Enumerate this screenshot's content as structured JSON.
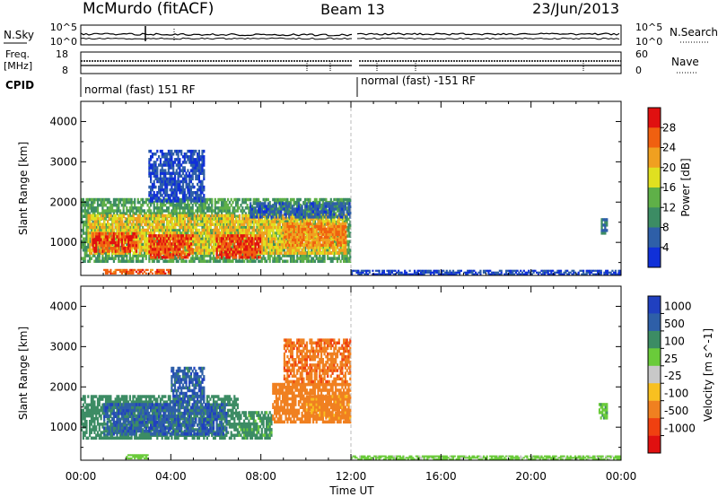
{
  "header": {
    "station": "McMurdo (fitACF)",
    "beam": "Beam 13",
    "date": "23/Jun/2013"
  },
  "top_panels": {
    "nsky_label": "N.Sky",
    "nsky_ticks": [
      "10^5",
      "10^0"
    ],
    "nsearch_label": "N.Search",
    "nsearch_ticks": [
      "10^5",
      "10^0"
    ],
    "freq_label_line1": "Freq.",
    "freq_label_line2": "[MHz]",
    "freq_ticks": [
      "18",
      "8"
    ],
    "nave_label": "Nave",
    "nave_ticks": [
      "60",
      "0"
    ],
    "cpid_label": "CPID",
    "cpid_segments": [
      {
        "label": "normal (fast) 151 RF",
        "start_hour": 0,
        "end_hour": 12
      },
      {
        "label": "normal (fast) -151 RF",
        "start_hour": 12,
        "end_hour": 24
      }
    ]
  },
  "chart_data": [
    {
      "type": "heatmap",
      "title": "",
      "xlabel": "Time UT",
      "ylabel": "Slant Range [km]",
      "xlim": [
        0,
        24
      ],
      "ylim": [
        180,
        4500
      ],
      "x_ticks": [
        "00:00",
        "04:00",
        "08:00",
        "12:00",
        "16:00",
        "20:00",
        "00:00"
      ],
      "y_ticks": [
        1000,
        2000,
        3000,
        4000
      ],
      "colorbar_label": "Power [dB]",
      "colorbar_ticks": [
        4,
        8,
        12,
        16,
        20,
        24,
        28
      ],
      "colorbar_range": [
        0,
        32
      ],
      "colors": [
        "#1030d8",
        "#2e5fa8",
        "#3c8c64",
        "#5fb048",
        "#e0e020",
        "#f0a020",
        "#f06010",
        "#e01010"
      ],
      "regions": [
        {
          "t0": 0.0,
          "t1": 12.0,
          "r0": 500,
          "r1": 2100,
          "level": 12
        },
        {
          "t0": 0.3,
          "t1": 11.8,
          "r0": 700,
          "r1": 1700,
          "level": 20
        },
        {
          "t0": 0.5,
          "t1": 2.5,
          "r0": 750,
          "r1": 1250,
          "level": 28
        },
        {
          "t0": 3.0,
          "t1": 5.0,
          "r0": 600,
          "r1": 1200,
          "level": 28
        },
        {
          "t0": 6.0,
          "t1": 8.0,
          "r0": 600,
          "r1": 1200,
          "level": 28
        },
        {
          "t0": 9.0,
          "t1": 11.8,
          "r0": 900,
          "r1": 1500,
          "level": 24
        },
        {
          "t0": 7.5,
          "t1": 12.0,
          "r0": 1600,
          "r1": 2000,
          "level": 6
        },
        {
          "t0": 3.0,
          "t1": 5.5,
          "r0": 2000,
          "r1": 3300,
          "level": 4
        },
        {
          "t0": 1.0,
          "t1": 4.0,
          "r0": 210,
          "r1": 340,
          "level": 26
        },
        {
          "t0": 23.1,
          "t1": 23.4,
          "r0": 1200,
          "r1": 1600,
          "level": 8
        },
        {
          "t0": 12.0,
          "t1": 24.0,
          "r0": 190,
          "r1": 320,
          "level": 4
        }
      ]
    },
    {
      "type": "heatmap",
      "title": "",
      "xlabel": "Time UT",
      "ylabel": "Slant Range [km]",
      "xlim": [
        0,
        24
      ],
      "ylim": [
        180,
        4500
      ],
      "x_ticks": [
        "00:00",
        "04:00",
        "08:00",
        "12:00",
        "16:00",
        "20:00",
        "00:00"
      ],
      "y_ticks": [
        1000,
        2000,
        3000,
        4000
      ],
      "colorbar_label": "Velocity [m s^-1]",
      "colorbar_ticks": [
        "1000",
        "500",
        "100",
        "25",
        "-25",
        "-100",
        "-500",
        "-1000"
      ],
      "colorbar_range": [
        -1250,
        1250
      ],
      "colors": [
        "#2040c0",
        "#2e5fa8",
        "#3c8c64",
        "#6acb3a",
        "#c8c8c8",
        "#f8c020",
        "#f08020",
        "#f04010",
        "#e01010"
      ],
      "regions": [
        {
          "t0": 0.0,
          "t1": 7.0,
          "r0": 700,
          "r1": 1800,
          "vel": 200
        },
        {
          "t0": 1.0,
          "t1": 6.5,
          "r0": 800,
          "r1": 1600,
          "vel": 800
        },
        {
          "t0": 4.0,
          "t1": 5.5,
          "r0": 1600,
          "r1": 2500,
          "vel": 800
        },
        {
          "t0": 7.0,
          "t1": 8.5,
          "r0": 700,
          "r1": 1400,
          "vel": 150
        },
        {
          "t0": 8.5,
          "t1": 12.0,
          "r0": 1100,
          "r1": 2100,
          "vel": -300
        },
        {
          "t0": 10.0,
          "t1": 12.0,
          "r0": 1200,
          "r1": 1800,
          "vel": -150
        },
        {
          "t0": 9.0,
          "t1": 12.0,
          "r0": 2100,
          "r1": 3200,
          "vel": -400
        },
        {
          "t0": 2.0,
          "t1": 3.0,
          "r0": 210,
          "r1": 330,
          "vel": 60
        },
        {
          "t0": 23.0,
          "t1": 23.4,
          "r0": 1200,
          "r1": 1600,
          "vel": 80
        },
        {
          "t0": 12.0,
          "t1": 24.0,
          "r0": 190,
          "r1": 300,
          "vel": 40
        }
      ]
    }
  ]
}
